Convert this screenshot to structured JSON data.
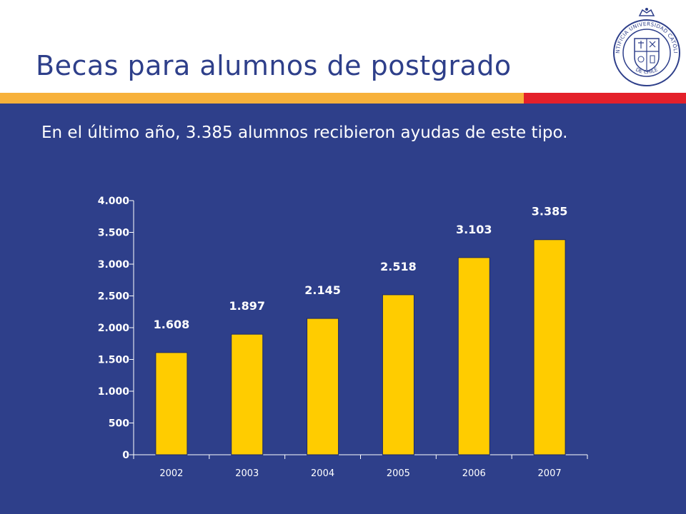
{
  "slide": {
    "title": "Becas para alumnos de postgrado",
    "subtitle": "En el último año, 3.385 alumnos recibieron ayudas de este tipo."
  },
  "logo": {
    "icon": "university-seal-icon",
    "text": "PONTIFICIA UNIVERSIDAD CATÓLICA DE CHILE"
  },
  "colors": {
    "primary_blue": "#2e3f8a",
    "band_yellow": "#f7b13b",
    "band_red": "#e4202a",
    "bar_fill": "#ffcc00"
  },
  "chart_data": {
    "type": "bar",
    "categories": [
      "2002",
      "2003",
      "2004",
      "2005",
      "2006",
      "2007"
    ],
    "values": [
      1608,
      1897,
      2145,
      2518,
      3103,
      3385
    ],
    "value_labels": [
      "1.608",
      "1.897",
      "2.145",
      "2.518",
      "3.103",
      "3.385"
    ],
    "yticks": [
      0,
      500,
      1000,
      1500,
      2000,
      2500,
      3000,
      3500,
      4000
    ],
    "ytick_labels": [
      "0",
      "500",
      "1.000",
      "1.500",
      "2.000",
      "2.500",
      "3.000",
      "3.500",
      "4.000"
    ],
    "ylim": [
      0,
      4000
    ],
    "title": "",
    "xlabel": "",
    "ylabel": "",
    "grid": false,
    "legend": false
  }
}
